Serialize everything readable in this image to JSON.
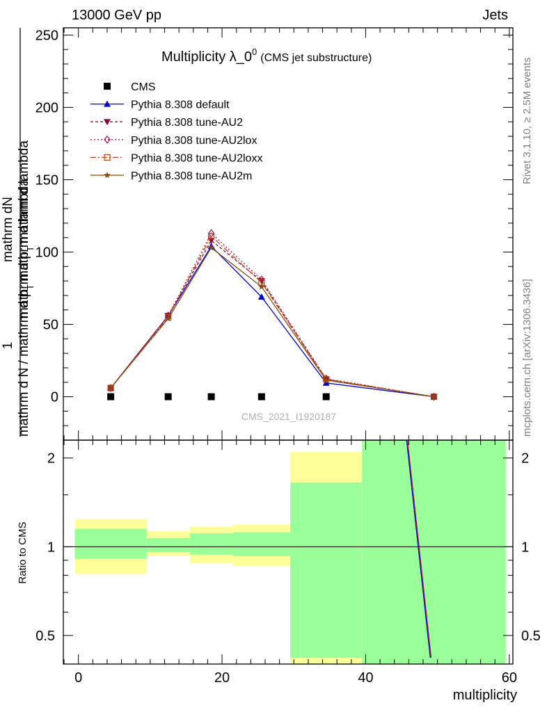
{
  "header": {
    "left": "13000 GeV pp",
    "right": "Jets"
  },
  "title": {
    "main": "Multiplicity λ_0",
    "superscript": "0",
    "sub": "(CMS jet substructure)"
  },
  "side_labels": {
    "rivet": "Rivet 3.1.10, ≥ 2.5M events",
    "mcplots": "mcplots.cern.ch [arXiv:1306.3436]"
  },
  "watermark": "CMS_2021_I1920187",
  "ylabel": {
    "numerator_1": "mathrm dN",
    "numerator_2": "mathrm d p",
    "numerator_2_sub": "T",
    "numerator_3": "mathrm d lambda",
    "prefix": "1",
    "denominator_1": "mathrm d N / mathrm d p",
    "denominator_1_sub": "T",
    "denominator_2": "mathrm d lambda"
  },
  "ratio_ylabel": "Ratio to CMS",
  "xlabel": "multiplicity",
  "legend": [
    {
      "label": "CMS",
      "color": "#000000",
      "marker": "square-filled",
      "dash": "none"
    },
    {
      "label": "Pythia 8.308 default",
      "color": "#0000cc",
      "marker": "triangle-up",
      "dash": "solid"
    },
    {
      "label": "Pythia 8.308 tune-AU2",
      "color": "#8b0a3c",
      "marker": "triangle-down",
      "dash": "4,3"
    },
    {
      "label": "Pythia 8.308 tune-AU2lox",
      "color": "#a5154a",
      "marker": "diamond-open",
      "dash": "2,3"
    },
    {
      "label": "Pythia 8.308 tune-AU2loxx",
      "color": "#c0470c",
      "marker": "square-open",
      "dash": "8,3,2,3"
    },
    {
      "label": "Pythia 8.308 tune-AU2m",
      "color": "#8b4a0a",
      "marker": "star",
      "dash": "solid"
    }
  ],
  "chart_data": {
    "type": "line",
    "x_ticks": [
      "0",
      "20",
      "40",
      "60"
    ],
    "main_panel": {
      "ylim": [
        -30,
        255
      ],
      "y_ticks": [
        "0",
        "50",
        "100",
        "150",
        "200",
        "250"
      ],
      "cms": {
        "name": "CMS",
        "x": [
          4.5,
          12.5,
          18.5,
          25.5,
          34.5
        ],
        "y": [
          0,
          0,
          0,
          0,
          0
        ]
      },
      "series": [
        {
          "name": "Pythia 8.308 default",
          "x": [
            4.5,
            12.5,
            18.5,
            25.5,
            34.5,
            49.5
          ],
          "y": [
            6,
            56,
            104,
            69,
            9.5,
            0
          ]
        },
        {
          "name": "Pythia 8.308 tune-AU2",
          "x": [
            4.5,
            12.5,
            18.5,
            25.5,
            34.5,
            49.5
          ],
          "y": [
            6,
            56,
            108,
            80,
            12,
            0
          ]
        },
        {
          "name": "Pythia 8.308 tune-AU2lox",
          "x": [
            4.5,
            12.5,
            18.5,
            25.5,
            34.5,
            49.5
          ],
          "y": [
            6,
            56,
            113,
            81,
            12.5,
            0
          ]
        },
        {
          "name": "Pythia 8.308 tune-AU2loxx",
          "x": [
            4.5,
            12.5,
            18.5,
            25.5,
            34.5,
            49.5
          ],
          "y": [
            6,
            55,
            111,
            79,
            12,
            0
          ]
        },
        {
          "name": "Pythia 8.308 tune-AU2m",
          "x": [
            4.5,
            12.5,
            18.5,
            25.5,
            34.5,
            49.5
          ],
          "y": [
            6,
            54,
            103,
            76,
            11.5,
            0
          ]
        }
      ]
    },
    "ratio_panel": {
      "scale": "log",
      "ylim": [
        0.4,
        2.3
      ],
      "y_ticks": [
        "0.5",
        "1",
        "2"
      ],
      "bands": [
        {
          "xlo": -0.5,
          "xhi": 9.5,
          "yellow": [
            0.81,
            1.24
          ],
          "green": [
            0.91,
            1.15
          ]
        },
        {
          "xlo": 9.5,
          "xhi": 15.5,
          "yellow": [
            0.93,
            1.13
          ],
          "green": [
            0.96,
            1.07
          ]
        },
        {
          "xlo": 15.5,
          "xhi": 21.5,
          "yellow": [
            0.88,
            1.17
          ],
          "green": [
            0.94,
            1.11
          ]
        },
        {
          "xlo": 21.5,
          "xhi": 29.5,
          "yellow": [
            0.86,
            1.19
          ],
          "green": [
            0.93,
            1.12
          ]
        },
        {
          "xlo": 29.5,
          "xhi": 39.5,
          "yellow": [
            0.4,
            2.1
          ],
          "green": [
            0.42,
            1.65
          ]
        },
        {
          "xlo": 39.5,
          "xhi": 59.5,
          "yellow": [
            0.4,
            2.3
          ],
          "green": [
            0.4,
            2.3
          ]
        }
      ],
      "ratio_line": {
        "x": [
          45.7,
          49.0
        ],
        "y": [
          2.3,
          0.42
        ]
      }
    }
  }
}
